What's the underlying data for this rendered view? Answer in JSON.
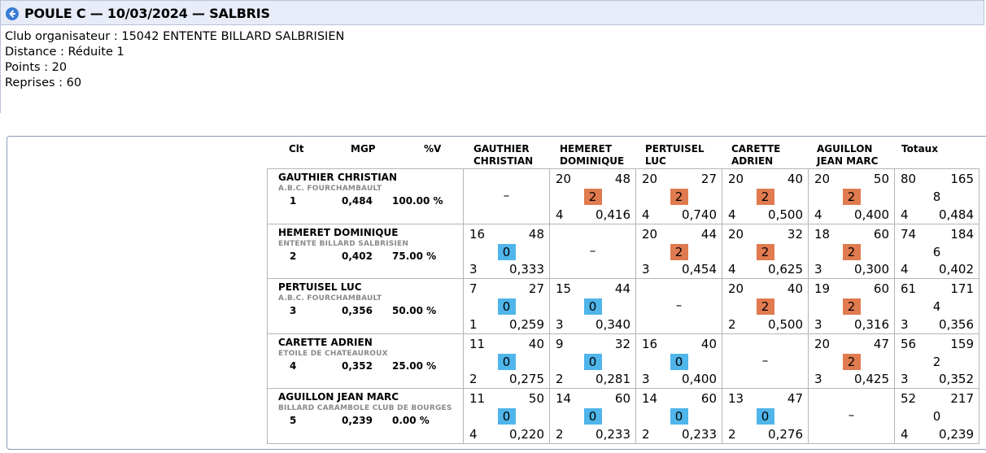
{
  "page": {
    "title": "POULE C — 10/03/2024 — SALBRIS",
    "back_icon": "arrow-left-circle-icon",
    "accent": "#3b7bd8"
  },
  "info": {
    "club": "Club organisateur : 15042 ENTENTE BILLARD SALBRISIEN",
    "distance": "Distance : Réduite 1",
    "points": "Points : 20",
    "reprises": "Reprises : 60"
  },
  "headers": {
    "clt": "Clt",
    "mgp": "MGP",
    "pct": "%V",
    "totals": "Totaux",
    "opponents": [
      [
        "GAUTHIER",
        "CHRISTIAN"
      ],
      [
        "HEMERET",
        "DOMINIQUE"
      ],
      [
        "PERTUISEL",
        "LUC"
      ],
      [
        "CARETTE",
        "ADRIEN"
      ],
      [
        "AGUILLON",
        "JEAN MARC"
      ]
    ]
  },
  "colors": {
    "win": "#e07a4f",
    "loss": "#4fb5ea"
  },
  "players": [
    {
      "name": "GAUTHIER CHRISTIAN",
      "club": "A.B.C. FOURCHAMBAULT",
      "rank": "1",
      "mgp": "0,484",
      "pct": "100.00 %",
      "games": [
        null,
        {
          "pts": "20",
          "dist": "48",
          "mp": "2",
          "rep": "4",
          "avg": "0,416"
        },
        {
          "pts": "20",
          "dist": "27",
          "mp": "2",
          "rep": "4",
          "avg": "0,740"
        },
        {
          "pts": "20",
          "dist": "40",
          "mp": "2",
          "rep": "4",
          "avg": "0,500"
        },
        {
          "pts": "20",
          "dist": "50",
          "mp": "2",
          "rep": "4",
          "avg": "0,400"
        }
      ],
      "total": {
        "pts": "80",
        "dist": "165",
        "mp": "8",
        "rep": "4",
        "avg": "0,484"
      }
    },
    {
      "name": "HEMERET DOMINIQUE",
      "club": "ENTENTE BILLARD SALBRISIEN",
      "rank": "2",
      "mgp": "0,402",
      "pct": "75.00 %",
      "games": [
        {
          "pts": "16",
          "dist": "48",
          "mp": "0",
          "rep": "3",
          "avg": "0,333"
        },
        null,
        {
          "pts": "20",
          "dist": "44",
          "mp": "2",
          "rep": "3",
          "avg": "0,454"
        },
        {
          "pts": "20",
          "dist": "32",
          "mp": "2",
          "rep": "4",
          "avg": "0,625"
        },
        {
          "pts": "18",
          "dist": "60",
          "mp": "2",
          "rep": "3",
          "avg": "0,300"
        }
      ],
      "total": {
        "pts": "74",
        "dist": "184",
        "mp": "6",
        "rep": "4",
        "avg": "0,402"
      }
    },
    {
      "name": "PERTUISEL LUC",
      "club": "A.B.C. FOURCHAMBAULT",
      "rank": "3",
      "mgp": "0,356",
      "pct": "50.00 %",
      "games": [
        {
          "pts": "7",
          "dist": "27",
          "mp": "0",
          "rep": "1",
          "avg": "0,259"
        },
        {
          "pts": "15",
          "dist": "44",
          "mp": "0",
          "rep": "3",
          "avg": "0,340"
        },
        null,
        {
          "pts": "20",
          "dist": "40",
          "mp": "2",
          "rep": "2",
          "avg": "0,500"
        },
        {
          "pts": "19",
          "dist": "60",
          "mp": "2",
          "rep": "3",
          "avg": "0,316"
        }
      ],
      "total": {
        "pts": "61",
        "dist": "171",
        "mp": "4",
        "rep": "3",
        "avg": "0,356"
      }
    },
    {
      "name": "CARETTE ADRIEN",
      "club": "ETOILE DE CHATEAUROUX",
      "rank": "4",
      "mgp": "0,352",
      "pct": "25.00 %",
      "games": [
        {
          "pts": "11",
          "dist": "40",
          "mp": "0",
          "rep": "2",
          "avg": "0,275"
        },
        {
          "pts": "9",
          "dist": "32",
          "mp": "0",
          "rep": "2",
          "avg": "0,281"
        },
        {
          "pts": "16",
          "dist": "40",
          "mp": "0",
          "rep": "3",
          "avg": "0,400"
        },
        null,
        {
          "pts": "20",
          "dist": "47",
          "mp": "2",
          "rep": "3",
          "avg": "0,425"
        }
      ],
      "total": {
        "pts": "56",
        "dist": "159",
        "mp": "2",
        "rep": "3",
        "avg": "0,352"
      }
    },
    {
      "name": "AGUILLON JEAN MARC",
      "club": "BILLARD CARAMBOLE CLUB DE BOURGES",
      "rank": "5",
      "mgp": "0,239",
      "pct": "0.00 %",
      "games": [
        {
          "pts": "11",
          "dist": "50",
          "mp": "0",
          "rep": "4",
          "avg": "0,220"
        },
        {
          "pts": "14",
          "dist": "60",
          "mp": "0",
          "rep": "2",
          "avg": "0,233"
        },
        {
          "pts": "14",
          "dist": "60",
          "mp": "0",
          "rep": "2",
          "avg": "0,233"
        },
        {
          "pts": "13",
          "dist": "47",
          "mp": "0",
          "rep": "2",
          "avg": "0,276"
        },
        null
      ],
      "total": {
        "pts": "52",
        "dist": "217",
        "mp": "0",
        "rep": "4",
        "avg": "0,239"
      }
    }
  ],
  "self_match_marker": "–"
}
